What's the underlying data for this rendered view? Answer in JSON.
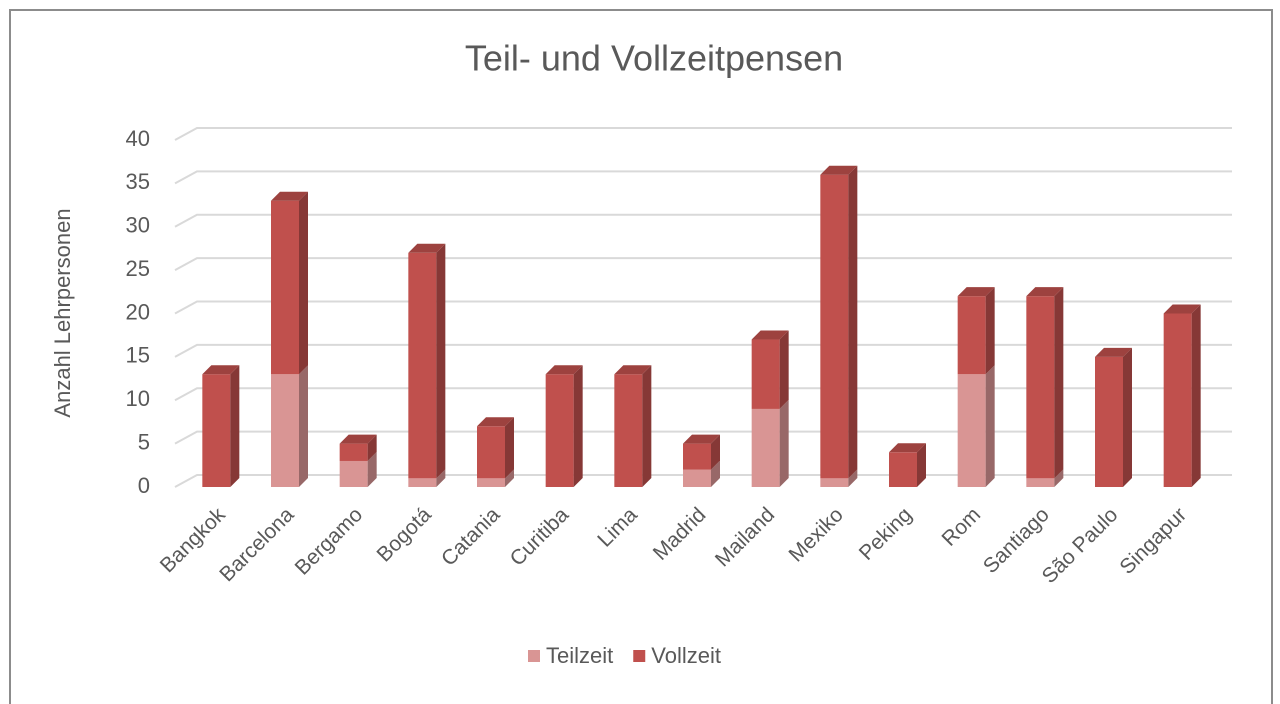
{
  "chart_data": {
    "type": "bar",
    "stacked": true,
    "three_d": true,
    "title": "Teil- und Vollzeitpensen",
    "y_label": "Anzahl Lehrpersonen",
    "categories": [
      "Bangkok",
      "Barcelona",
      "Bergamo",
      "Bogotá",
      "Catania",
      "Curitiba",
      "Lima",
      "Madrid",
      "Mailand",
      "Mexiko",
      "Peking",
      "Rom",
      "Santiago",
      "São Paulo",
      "Singapur"
    ],
    "series": [
      {
        "name": "Teilzeit",
        "color": "#d99594",
        "values": [
          0,
          13,
          3,
          1,
          1,
          0,
          0,
          2,
          9,
          1,
          0,
          13,
          1,
          0,
          0
        ]
      },
      {
        "name": "Vollzeit",
        "color": "#c0504d",
        "values": [
          13,
          20,
          2,
          26,
          6,
          13,
          13,
          3,
          8,
          35,
          4,
          9,
          21,
          15,
          20
        ]
      }
    ],
    "ylim": [
      0,
      40
    ],
    "yticks": [
      0,
      5,
      10,
      15,
      20,
      25,
      30,
      35,
      40
    ],
    "grid": true,
    "legend": "bottom"
  }
}
